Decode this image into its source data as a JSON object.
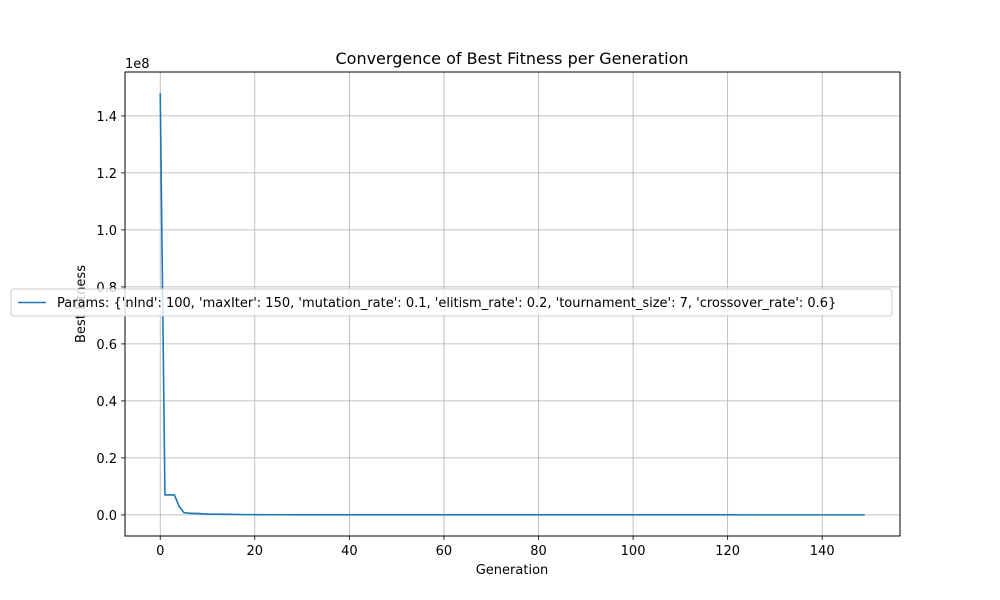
{
  "chart_data": {
    "type": "line",
    "title": "Convergence of Best Fitness per Generation",
    "xlabel": "Generation",
    "ylabel": "Best Fitness",
    "y_offset_label": "1e8",
    "y_scale_factor": 100000000,
    "xlim": [
      -7.45,
      156.45
    ],
    "ylim": [
      -7400000,
      155400000
    ],
    "x_ticks": [
      0,
      20,
      40,
      60,
      80,
      100,
      120,
      140
    ],
    "x_tick_labels": [
      "0",
      "20",
      "40",
      "60",
      "80",
      "100",
      "120",
      "140"
    ],
    "y_ticks": [
      0,
      20000000,
      40000000,
      60000000,
      80000000,
      100000000,
      120000000,
      140000000
    ],
    "y_tick_labels": [
      "0.0",
      "0.2",
      "0.4",
      "0.6",
      "0.8",
      "1.0",
      "1.2",
      "1.4"
    ],
    "grid": true,
    "legend_position": "center-left",
    "series": [
      {
        "name": "Params: {'nInd': 100, 'maxIter': 150, 'mutation_rate': 0.1, 'elitism_rate': 0.2, 'tournament_size': 7, 'crossover_rate': 0.6}",
        "color": "#1f77b4",
        "x": [
          0,
          1,
          2,
          3,
          4,
          5,
          6,
          7,
          8,
          9,
          10,
          12,
          14,
          16,
          18,
          20,
          25,
          30,
          40,
          60,
          80,
          100,
          120,
          140,
          149
        ],
        "y": [
          148000000,
          7000000,
          7000000,
          7000000,
          3000000,
          800000,
          600000,
          500000,
          500000,
          400000,
          300000,
          250000,
          200000,
          150000,
          100000,
          80000,
          60000,
          50000,
          40000,
          30000,
          25000,
          20000,
          18000,
          15000,
          15000
        ]
      }
    ]
  }
}
